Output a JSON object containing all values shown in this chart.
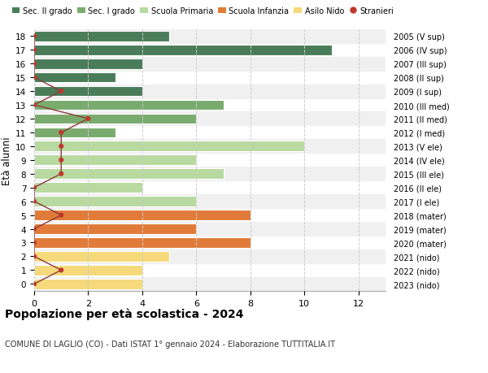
{
  "ages": [
    18,
    17,
    16,
    15,
    14,
    13,
    12,
    11,
    10,
    9,
    8,
    7,
    6,
    5,
    4,
    3,
    2,
    1,
    0
  ],
  "right_labels": [
    "2005 (V sup)",
    "2006 (IV sup)",
    "2007 (III sup)",
    "2008 (II sup)",
    "2009 (I sup)",
    "2010 (III med)",
    "2011 (II med)",
    "2012 (I med)",
    "2013 (V ele)",
    "2014 (IV ele)",
    "2015 (III ele)",
    "2016 (II ele)",
    "2017 (I ele)",
    "2018 (mater)",
    "2019 (mater)",
    "2020 (mater)",
    "2021 (nido)",
    "2022 (nido)",
    "2023 (nido)"
  ],
  "bar_values": [
    5,
    11,
    4,
    3,
    4,
    7,
    6,
    3,
    10,
    6,
    7,
    4,
    6,
    8,
    6,
    8,
    5,
    4,
    4
  ],
  "bar_colors": [
    "#4a7c59",
    "#4a7c59",
    "#4a7c59",
    "#4a7c59",
    "#4a7c59",
    "#7aab6e",
    "#7aab6e",
    "#7aab6e",
    "#b8d9a0",
    "#b8d9a0",
    "#b8d9a0",
    "#b8d9a0",
    "#b8d9a0",
    "#e07b39",
    "#e07b39",
    "#e07b39",
    "#f5d97a",
    "#f5d97a",
    "#f5d97a"
  ],
  "stranieri_values": [
    0,
    0,
    0,
    0,
    1,
    0,
    2,
    1,
    1,
    1,
    1,
    0,
    0,
    1,
    0,
    0,
    0,
    1,
    0
  ],
  "stranieri_color": "#c0392b",
  "stranieri_line_color": "#8b3a3a",
  "xlim": [
    0,
    13
  ],
  "ylim": [
    -0.5,
    18.5
  ],
  "ylabel": "Età alunni",
  "title": "Popolazione per età scolastica - 2024",
  "subtitle": "COMUNE DI LAGLIO (CO) - Dati ISTAT 1° gennaio 2024 - Elaborazione TUTTITALIA.IT",
  "legend_labels": [
    "Sec. II grado",
    "Sec. I grado",
    "Scuola Primaria",
    "Scuola Infanzia",
    "Asilo Nido",
    "Stranieri"
  ],
  "legend_colors": [
    "#4a7c59",
    "#7aab6e",
    "#b8d9a0",
    "#e07b39",
    "#f5d97a",
    "#c0392b"
  ],
  "background_color": "#ffffff",
  "grid_color": "#cccccc",
  "xticks": [
    0,
    2,
    4,
    6,
    8,
    10,
    12
  ]
}
